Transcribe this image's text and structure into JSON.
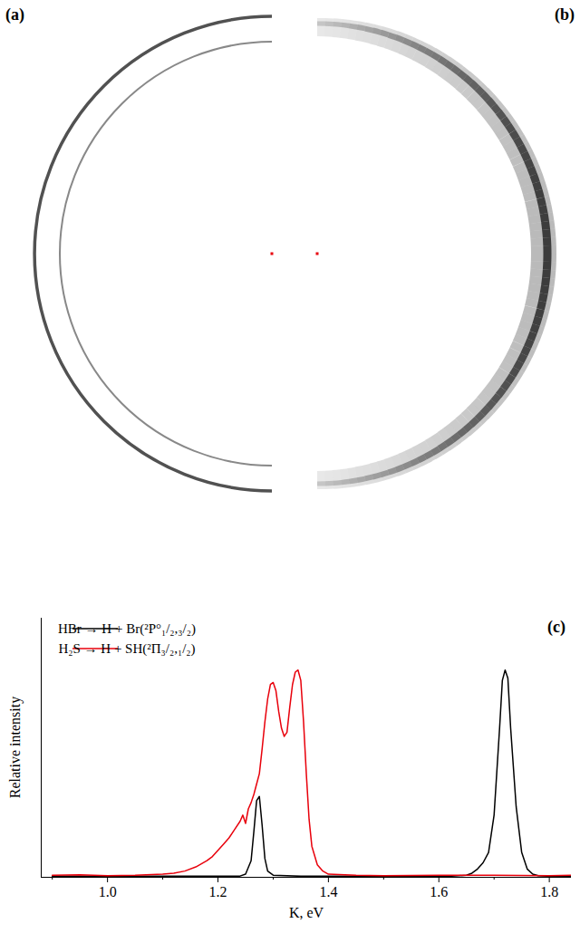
{
  "images": [
    {
      "panel": "(a)"
    },
    {
      "panel": "(b)"
    }
  ],
  "chart_data": {
    "type": "line",
    "panel": "(c)",
    "xlabel": "K, eV",
    "ylabel": "Relative intensity",
    "xlim": [
      0.88,
      1.84
    ],
    "ylim": [
      0,
      1.25
    ],
    "xticks": [
      {
        "value": 1,
        "label": "1.0"
      },
      1.2,
      1.4,
      1.6,
      1.8
    ],
    "xminorticks": [
      0.9,
      1.1,
      1.3,
      1.5,
      1.7
    ],
    "tick_labels": "x",
    "legend": "top-left",
    "series": [
      {
        "name": "HBr → H + Br(²P°₁/₂,₃/₂)",
        "color": "#000000",
        "x": [
          0.9,
          1.0,
          1.2,
          1.24,
          1.25,
          1.26,
          1.265,
          1.27,
          1.275,
          1.28,
          1.285,
          1.29,
          1.3,
          1.35,
          1.5,
          1.62,
          1.65,
          1.66,
          1.67,
          1.68,
          1.69,
          1.7,
          1.71,
          1.715,
          1.72,
          1.725,
          1.73,
          1.74,
          1.75,
          1.76,
          1.77,
          1.78,
          1.8,
          1.84
        ],
        "values": [
          0.005,
          0.005,
          0.005,
          0.006,
          0.015,
          0.08,
          0.22,
          0.37,
          0.39,
          0.25,
          0.09,
          0.03,
          0.01,
          0.005,
          0.005,
          0.005,
          0.01,
          0.02,
          0.04,
          0.07,
          0.12,
          0.3,
          0.72,
          0.95,
          1.0,
          0.96,
          0.72,
          0.34,
          0.12,
          0.04,
          0.015,
          0.008,
          0.005,
          0.005
        ]
      },
      {
        "name": "H₂S → H + SH(²Π₃/₂,₁/₂)",
        "color": "#e8000b",
        "x": [
          0.9,
          0.95,
          1.0,
          1.05,
          1.1,
          1.12,
          1.14,
          1.16,
          1.18,
          1.19,
          1.2,
          1.21,
          1.22,
          1.23,
          1.24,
          1.245,
          1.25,
          1.255,
          1.26,
          1.265,
          1.27,
          1.275,
          1.28,
          1.285,
          1.29,
          1.295,
          1.3,
          1.305,
          1.31,
          1.315,
          1.32,
          1.325,
          1.33,
          1.335,
          1.34,
          1.345,
          1.35,
          1.355,
          1.36,
          1.365,
          1.37,
          1.38,
          1.39,
          1.4,
          1.45,
          1.5,
          1.6,
          1.7,
          1.8,
          1.84
        ],
        "values": [
          0.01,
          0.012,
          0.008,
          0.01,
          0.015,
          0.02,
          0.03,
          0.05,
          0.08,
          0.1,
          0.13,
          0.16,
          0.19,
          0.23,
          0.27,
          0.3,
          0.26,
          0.33,
          0.36,
          0.4,
          0.45,
          0.5,
          0.62,
          0.75,
          0.86,
          0.93,
          0.94,
          0.9,
          0.8,
          0.72,
          0.68,
          0.7,
          0.82,
          0.93,
          0.99,
          1.0,
          0.95,
          0.75,
          0.5,
          0.28,
          0.15,
          0.06,
          0.03,
          0.015,
          0.01,
          0.008,
          0.01,
          0.01,
          0.008,
          0.01
        ]
      }
    ]
  }
}
